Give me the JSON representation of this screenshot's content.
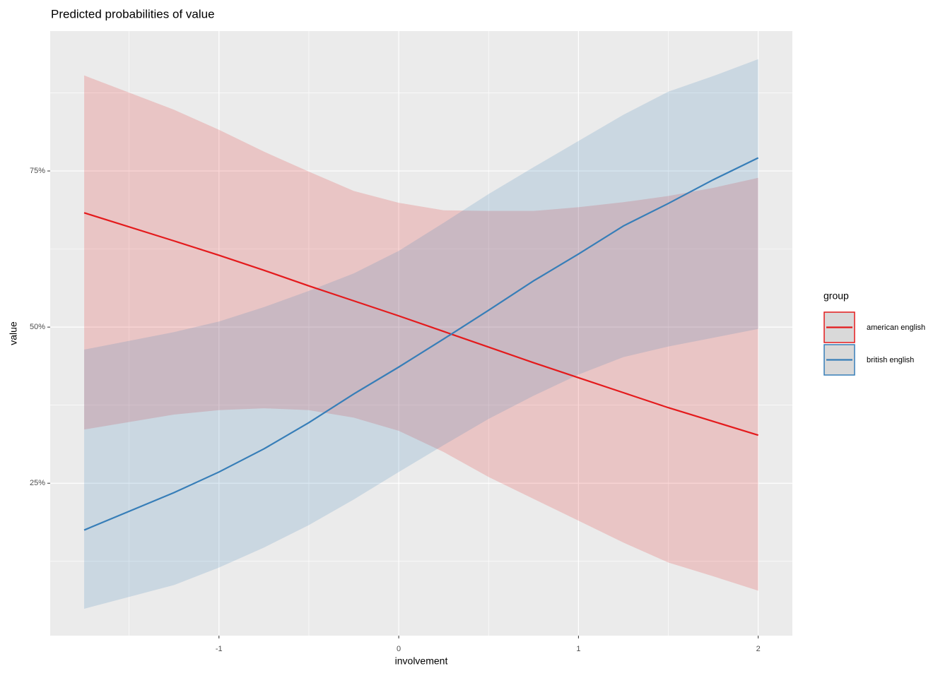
{
  "chart_data": {
    "type": "line",
    "title": "Predicted probabilities of value",
    "x_label": "involvement",
    "y_label": "value",
    "legend_title": "group",
    "x": [
      -1.75,
      -1.25,
      -1,
      -0.75,
      -0.5,
      -0.25,
      0,
      0.25,
      0.5,
      0.75,
      1,
      1.25,
      1.5,
      1.75,
      2
    ],
    "series": [
      {
        "name": "american english",
        "color": "#e41a1c",
        "values": [
          68.3,
          63.8,
          61.5,
          59.1,
          56.6,
          54.2,
          51.8,
          49.3,
          46.8,
          44.3,
          41.9,
          39.5,
          37.1,
          34.9,
          32.7
        ],
        "upper": [
          90.3,
          84.8,
          81.6,
          78.1,
          74.9,
          71.8,
          69.9,
          68.7,
          68.6,
          68.6,
          69.2,
          70.0,
          71.0,
          72.3,
          73.9
        ],
        "lower": [
          33.6,
          36.0,
          36.7,
          37.0,
          36.7,
          35.5,
          33.4,
          30.0,
          26.0,
          22.5,
          19.0,
          15.5,
          12.3,
          10.1,
          7.8
        ]
      },
      {
        "name": "british english",
        "color": "#377eb8",
        "values": [
          17.5,
          23.5,
          26.8,
          30.5,
          34.7,
          39.3,
          43.6,
          48.1,
          52.7,
          57.4,
          61.7,
          66.2,
          69.8,
          73.6,
          77.1
        ],
        "upper": [
          46.4,
          49.2,
          50.9,
          53.2,
          55.8,
          58.6,
          62.2,
          66.7,
          71.3,
          75.6,
          79.8,
          84.0,
          87.7,
          90.2,
          92.9
        ],
        "lower": [
          4.9,
          8.7,
          11.5,
          14.7,
          18.3,
          22.4,
          26.8,
          31.1,
          35.3,
          39.0,
          42.4,
          45.2,
          46.9,
          48.3,
          49.7
        ]
      }
    ],
    "xlim": [
      -1.939,
      2.19
    ],
    "xticks": [
      -1,
      0,
      1,
      2
    ],
    "ylim": [
      0.6,
      97.4
    ],
    "yticks": [
      {
        "value": 25,
        "label": "25%"
      },
      {
        "value": 50,
        "label": "50%"
      },
      {
        "value": 75,
        "label": "75%"
      }
    ],
    "grid": true,
    "ribbon_opacity": 0.18,
    "legend": "right"
  }
}
